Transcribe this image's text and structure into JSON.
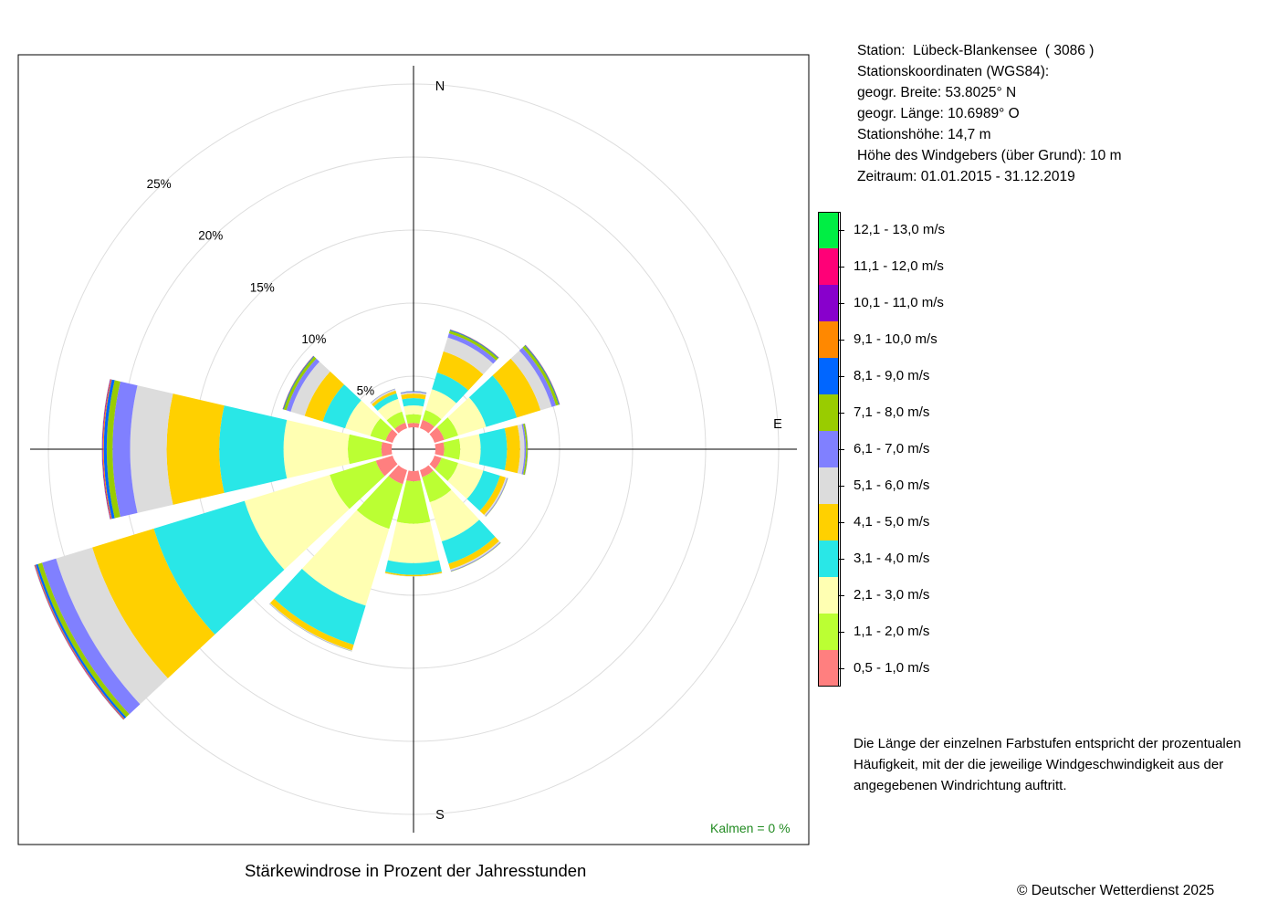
{
  "station": {
    "line1": "Station:  Lübeck-Blankensee  ( 3086 )",
    "line2": "Stationskoordinaten (WGS84):",
    "line3": "geogr. Breite: 53.8025° N",
    "line4": "geogr. Länge: 10.6989° O",
    "line5": "Stationshöhe: 14,7 m",
    "line6": "Höhe des Windgebers (über Grund): 10 m",
    "line7": "Zeitraum: 01.01.2015 - 31.12.2019"
  },
  "note": "Die Länge der einzelnen Farbstufen entspricht der prozentualen Häufigkeit, mit der die jeweilige Windgeschwindigkeit aus der angegebenen Windrichtung auftritt.",
  "kalmen": "Kalmen  =  0 %",
  "copyright": "© Deutscher Wetterdienst  2025",
  "chart_data": {
    "type": "wind-rose",
    "title": "Stärkewindrose in Prozent der Jahresstunden",
    "directions_deg": [
      0,
      30,
      60,
      90,
      120,
      150,
      180,
      210,
      240,
      270,
      300,
      330
    ],
    "compass_labels": {
      "N": "N",
      "E": "E",
      "S": "S"
    },
    "ring_labels": [
      "5%",
      "10%",
      "15%",
      "20%",
      "25%"
    ],
    "ring_values": [
      5,
      10,
      15,
      20,
      25
    ],
    "inner_radius_percent": 1.5,
    "speed_classes": [
      {
        "label": "0,5 - 1,0 m/s",
        "color": "#ff7f7f"
      },
      {
        "label": "1,1 - 2,0 m/s",
        "color": "#bbff33"
      },
      {
        "label": "2,1 - 3,0 m/s",
        "color": "#ffffb2"
      },
      {
        "label": "3,1 - 4,0 m/s",
        "color": "#29e7e7"
      },
      {
        "label": "4,1 - 5,0 m/s",
        "color": "#ffd000"
      },
      {
        "label": "5,1 - 6,0 m/s",
        "color": "#dcdcdc"
      },
      {
        "label": "6,1 - 7,0 m/s",
        "color": "#8080ff"
      },
      {
        "label": "7,1 - 8,0 m/s",
        "color": "#99cc00"
      },
      {
        "label": "8,1 - 9,0 m/s",
        "color": "#0066ff"
      },
      {
        "label": "9,1 - 10,0 m/s",
        "color": "#ff8800"
      },
      {
        "label": "10,1 - 11,0 m/s",
        "color": "#8800cc"
      },
      {
        "label": "11,1 - 12,0 m/s",
        "color": "#ff0077"
      },
      {
        "label": "12,1 - 13,0 m/s",
        "color": "#00ee44"
      }
    ],
    "sector_values": [
      [
        0.3,
        0.6,
        0.6,
        0.5,
        0.3,
        0.1,
        0.05,
        0.02,
        0.01,
        0,
        0,
        0,
        0
      ],
      [
        0.6,
        0.7,
        1.5,
        1.2,
        1.5,
        1.0,
        0.3,
        0.2,
        0.05,
        0.02,
        0.01,
        0,
        0
      ],
      [
        0.7,
        1.0,
        2.0,
        2.2,
        1.7,
        0.8,
        0.3,
        0.2,
        0.05,
        0.02,
        0.01,
        0,
        0
      ],
      [
        0.6,
        1.1,
        1.4,
        1.8,
        0.9,
        0.3,
        0.1,
        0.1,
        0.02,
        0.01,
        0,
        0,
        0
      ],
      [
        0.5,
        1.2,
        1.8,
        1.2,
        0.4,
        0.1,
        0.05,
        0.02,
        0,
        0,
        0,
        0,
        0
      ],
      [
        0.5,
        1.8,
        2.8,
        1.6,
        0.4,
        0.1,
        0.05,
        0.02,
        0,
        0,
        0,
        0,
        0
      ],
      [
        0.7,
        2.9,
        2.7,
        0.8,
        0.1,
        0.02,
        0,
        0,
        0,
        0,
        0,
        0,
        0
      ],
      [
        1.0,
        3.2,
        5.5,
        2.8,
        0.4,
        0.05,
        0.02,
        0.01,
        0,
        0,
        0,
        0,
        0
      ],
      [
        1.2,
        3.3,
        6.1,
        6.5,
        4.4,
        2.6,
        1.0,
        0.3,
        0.15,
        0.05,
        0.03,
        0.02,
        0.01
      ],
      [
        0.7,
        2.3,
        4.4,
        4.4,
        3.6,
        2.5,
        1.2,
        0.4,
        0.2,
        0.06,
        0.04,
        0.02,
        0.01
      ],
      [
        0.5,
        1.1,
        1.8,
        1.6,
        1.3,
        1.0,
        0.3,
        0.2,
        0.05,
        0.02,
        0.01,
        0,
        0
      ],
      [
        0.4,
        0.8,
        0.9,
        0.4,
        0.2,
        0.1,
        0.03,
        0.01,
        0,
        0,
        0,
        0,
        0
      ]
    ]
  }
}
